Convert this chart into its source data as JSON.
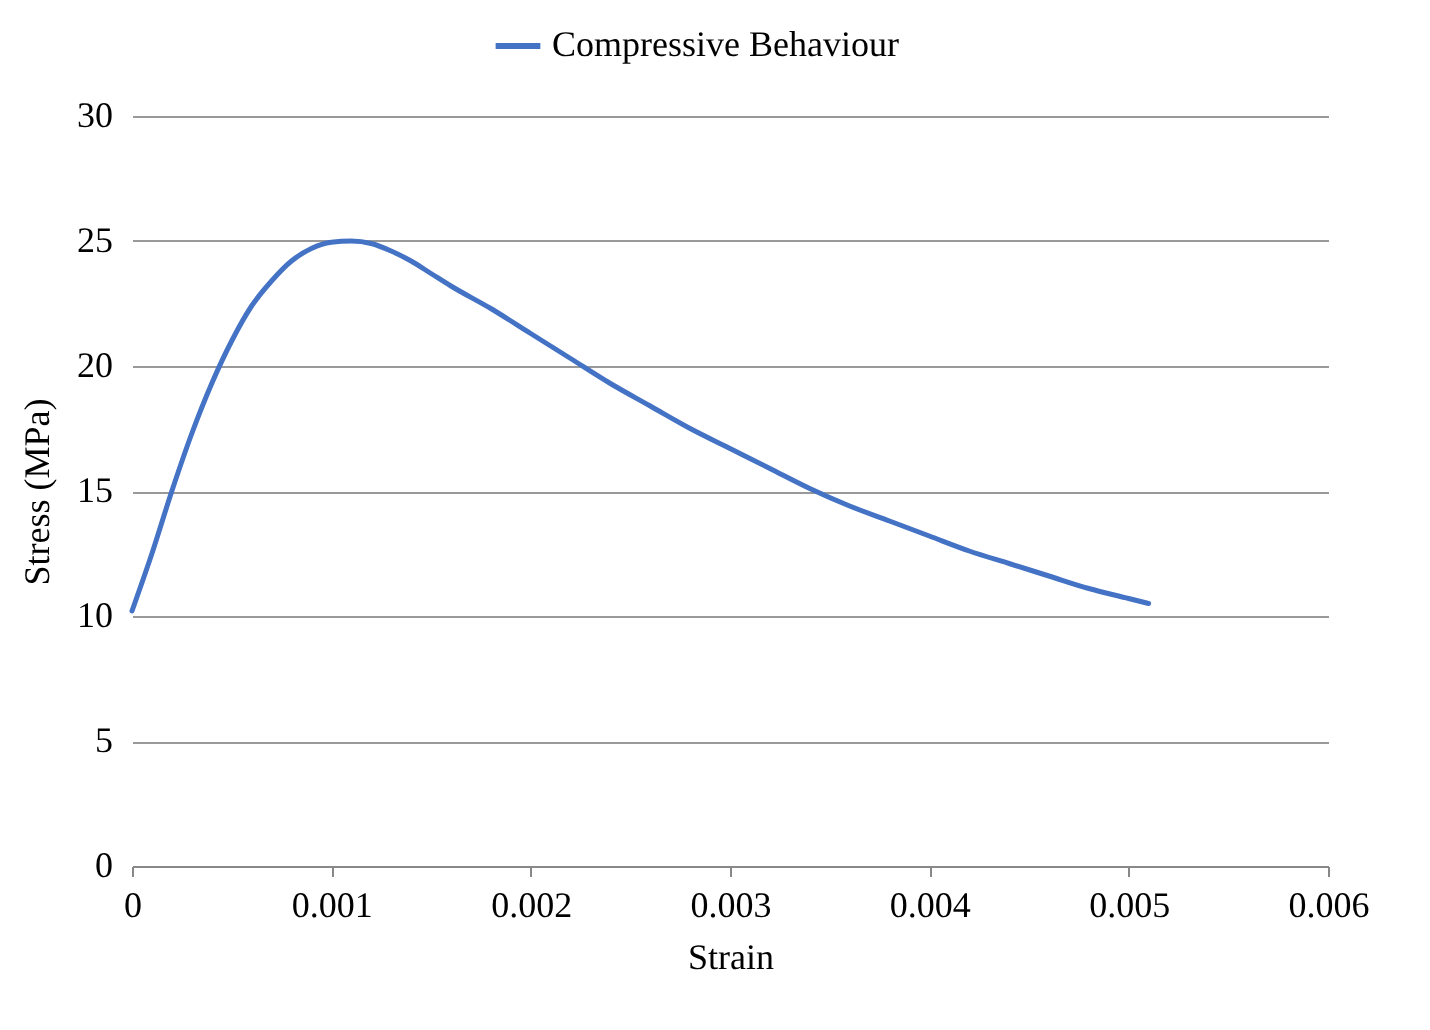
{
  "chart_data": {
    "type": "line",
    "xlabel": "Strain",
    "ylabel": "Stress (MPa)",
    "x": [
      0,
      0.0001,
      0.0002,
      0.0003,
      0.0004,
      0.0005,
      0.0006,
      0.0007,
      0.0008,
      0.0009,
      0.001,
      0.0011,
      0.0012,
      0.0013,
      0.0014,
      0.0015,
      0.0016,
      0.0018,
      0.002,
      0.0022,
      0.0024,
      0.0026,
      0.0028,
      0.003,
      0.0032,
      0.0034,
      0.0036,
      0.0038,
      0.004,
      0.0042,
      0.0044,
      0.0046,
      0.0048,
      0.005,
      0.0051
    ],
    "series": [
      {
        "name": "Compressive Behaviour",
        "color": "#4472c4",
        "values": [
          10.2,
          12.5,
          15.0,
          17.3,
          19.3,
          21.0,
          22.4,
          23.4,
          24.2,
          24.7,
          24.95,
          25.0,
          24.9,
          24.6,
          24.2,
          23.7,
          23.2,
          22.3,
          21.3,
          20.3,
          19.3,
          18.4,
          17.5,
          16.7,
          15.9,
          15.1,
          14.4,
          13.8,
          13.2,
          12.6,
          12.1,
          11.6,
          11.1,
          10.7,
          10.5
        ]
      }
    ],
    "xlim": [
      0,
      0.006
    ],
    "xticks": [
      0,
      0.001,
      0.002,
      0.003,
      0.004,
      0.005,
      0.006
    ],
    "ylim": [
      0,
      30
    ],
    "yticks": [
      0,
      5,
      10,
      15,
      20,
      25,
      30
    ],
    "grid": "y",
    "legend": "top",
    "marker": "none",
    "line_style": "solid"
  }
}
